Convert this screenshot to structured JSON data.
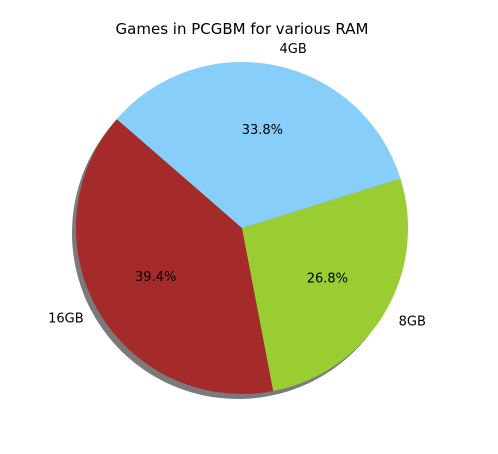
{
  "chart_data": {
    "type": "pie",
    "title": "Games in PCGBM for various RAM",
    "slices": [
      {
        "label": "16GB",
        "value": 39.4,
        "pct_label": "39.4%",
        "color": "#a52a2a"
      },
      {
        "label": "8GB",
        "value": 26.8,
        "pct_label": "26.8%",
        "color": "#9acd32"
      },
      {
        "label": "4GB",
        "value": 33.8,
        "pct_label": "33.8%",
        "color": "#87cefa"
      }
    ],
    "start_angle_deg": 139,
    "direction": "counterclockwise",
    "shadow": true,
    "shadow_color": "#7a7a7a"
  }
}
